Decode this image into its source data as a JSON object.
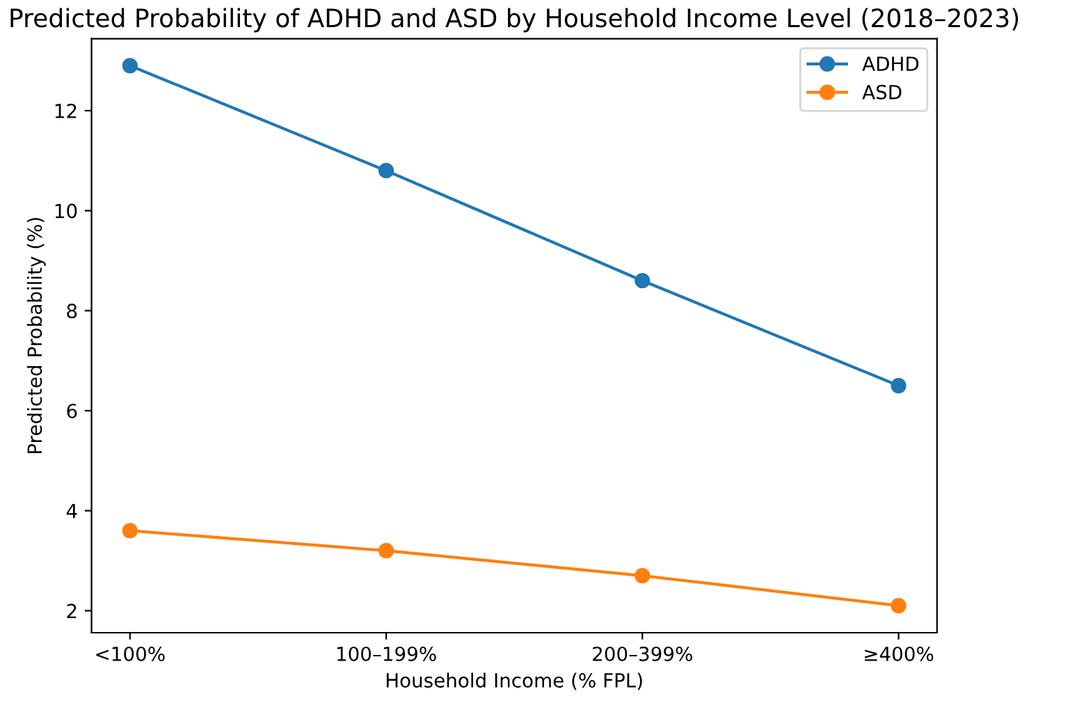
{
  "chart_data": {
    "type": "line",
    "title": "Predicted Probability of ADHD and ASD by Household Income Level (2018–2023)",
    "xlabel": "Household Income (% FPL)",
    "ylabel": "Predicted Probability (%)",
    "categories": [
      "<100%",
      "100–199%",
      "200–399%",
      "≥400%"
    ],
    "series": [
      {
        "name": "ADHD",
        "color": "#1f77b4",
        "values": [
          12.9,
          10.8,
          8.6,
          6.5
        ]
      },
      {
        "name": "ASD",
        "color": "#ff7f0e",
        "values": [
          3.6,
          3.2,
          2.7,
          2.1
        ]
      }
    ],
    "ylim": [
      1.56,
      13.44
    ],
    "yticks": [
      2,
      4,
      6,
      8,
      10,
      12
    ],
    "marker": "circle",
    "line_style": "solid",
    "legend": "top right",
    "grid": false
  }
}
